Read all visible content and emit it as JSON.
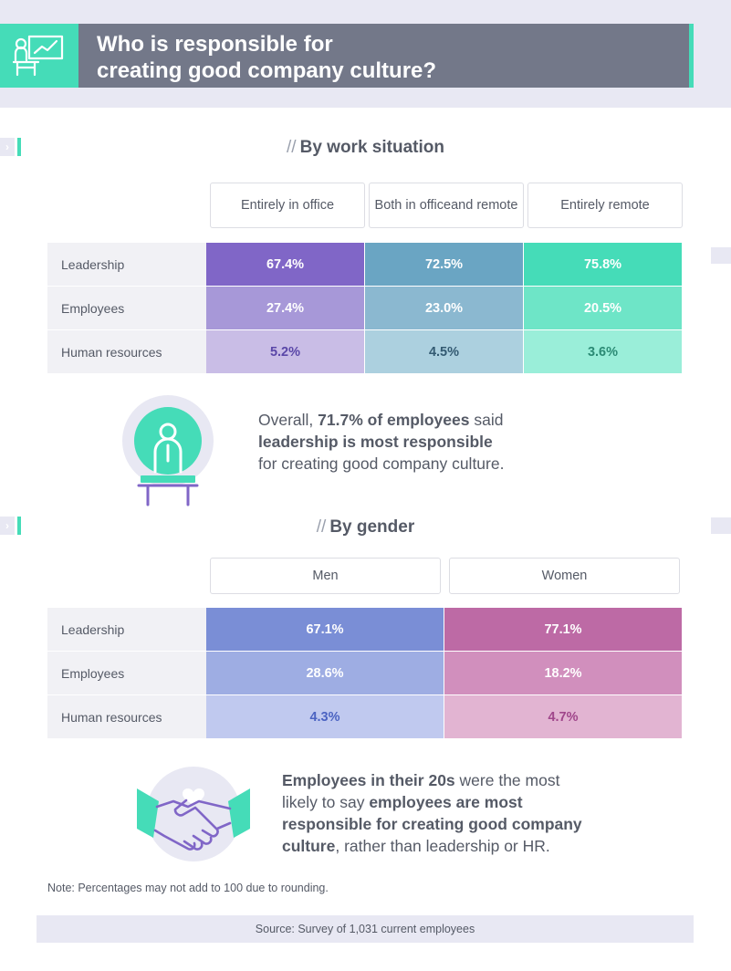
{
  "header": {
    "title_line1": "Who is responsible for",
    "title_line2": "creating good company culture?",
    "icon": "presentation-chart-icon"
  },
  "chart_data": [
    {
      "type": "table",
      "title": "By work situation",
      "title_prefix": "//",
      "columns": [
        "Entirely in office",
        "Both in office and remote",
        "Entirely remote"
      ],
      "column_lines": [
        [
          "Entirely in office"
        ],
        [
          "Both in office",
          "and remote"
        ],
        [
          "Entirely remote"
        ]
      ],
      "rows": [
        "Leadership",
        "Employees",
        "Human resources"
      ],
      "values": [
        [
          "67.4%",
          "72.5%",
          "75.8%"
        ],
        [
          "27.4%",
          "23.0%",
          "20.5%"
        ],
        [
          "5.2%",
          "4.5%",
          "3.6%"
        ]
      ],
      "colors": [
        [
          "#8066c7",
          "#6aa5c3",
          "#45dcb8"
        ],
        [
          "#a798d8",
          "#8bb8d0",
          "#6ee5c7"
        ],
        [
          "#c9bde6",
          "#acd0df",
          "#9aeed9"
        ]
      ],
      "text_colors": [
        [
          "#ffffff",
          "#ffffff",
          "#ffffff"
        ],
        [
          "#ffffff",
          "#ffffff",
          "#ffffff"
        ],
        [
          "#5a47a8",
          "#335a72",
          "#2b8a74"
        ]
      ]
    },
    {
      "type": "table",
      "title": "By gender",
      "title_prefix": "//",
      "columns": [
        "Men",
        "Women"
      ],
      "column_lines": [
        [
          "Men"
        ],
        [
          "Women"
        ]
      ],
      "rows": [
        "Leadership",
        "Employees",
        "Human resources"
      ],
      "values": [
        [
          "67.1%",
          "77.1%"
        ],
        [
          "28.6%",
          "18.2%"
        ],
        [
          "4.3%",
          "4.7%"
        ]
      ],
      "colors": [
        [
          "#7a8ed6",
          "#bd6aa5"
        ],
        [
          "#9eade3",
          "#d18fbd"
        ],
        [
          "#c0c9ef",
          "#e2b4d2"
        ]
      ],
      "text_colors": [
        [
          "#ffffff",
          "#ffffff"
        ],
        [
          "#ffffff",
          "#ffffff"
        ],
        [
          "#4b63c2",
          "#a0468b"
        ]
      ]
    }
  ],
  "callout1": {
    "pre": "Overall, ",
    "bold1": "71.7% of employees",
    "mid": " said",
    "bold2": "leadership is most responsible",
    "post": "for creating good company culture.",
    "icon": "person-at-podium-icon"
  },
  "callout2": {
    "bold1": "Employees in their 20s",
    "mid1": " were the most",
    "mid2": "likely to say ",
    "bold2": "employees are most",
    "bold3": "responsible for creating good company",
    "bold4": "culture",
    "post": ", rather than leadership or HR.",
    "icon": "handshake-heart-icon"
  },
  "note": "Note: Percentages may not add to 100 due to rounding.",
  "source": "Source: Survey of 1,031 current employees",
  "colors": {
    "accent": "#45dcb8",
    "header_bg": "#737889",
    "band": "#e8e8f3",
    "purple": "#8066c7"
  }
}
